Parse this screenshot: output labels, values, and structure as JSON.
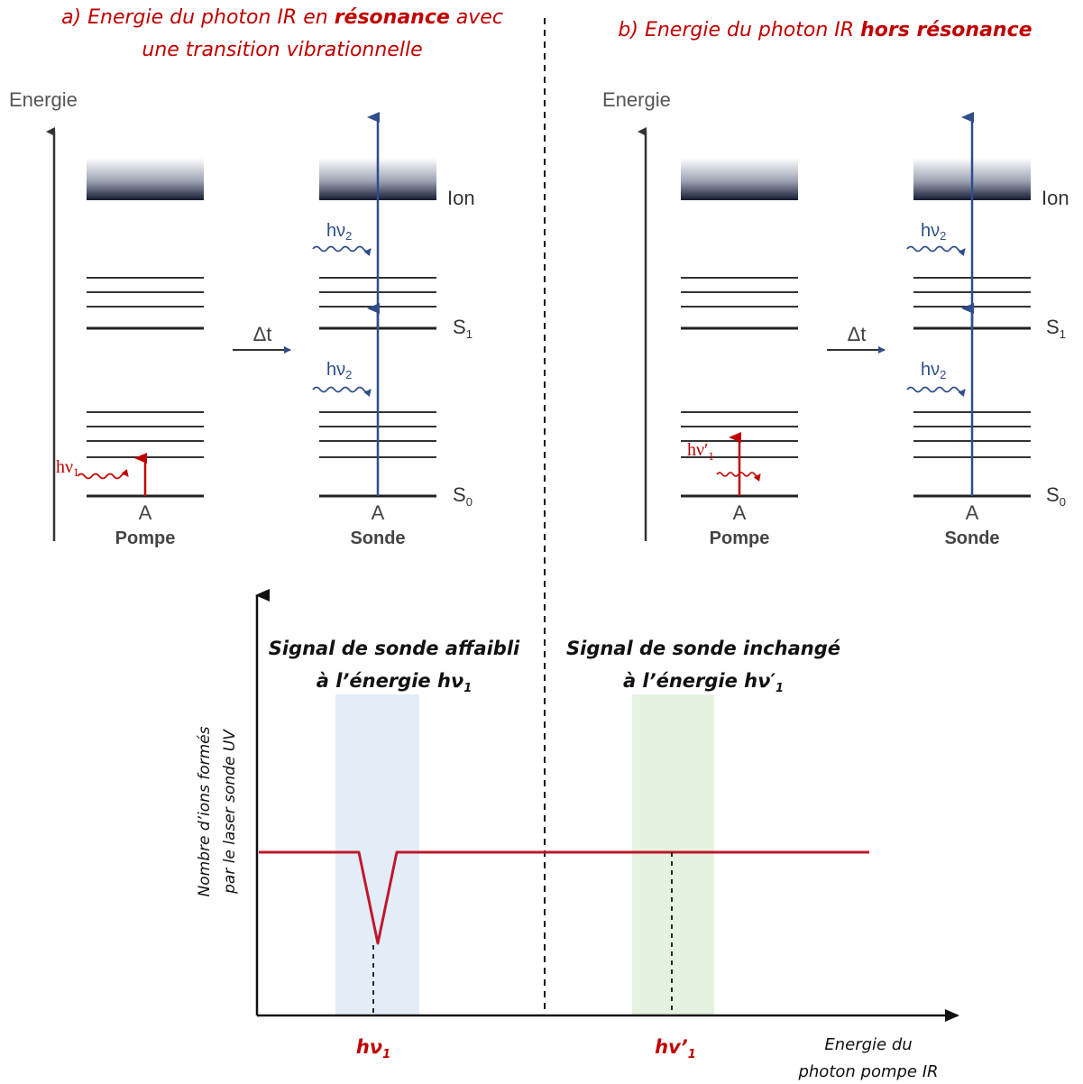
{
  "panel_a": {
    "title_prefix": "a) Energie du photon IR en ",
    "title_bold": "résonance",
    "title_suffix": " avec",
    "title_line2": "une transition vibrationnelle"
  },
  "panel_b": {
    "title_prefix": "b) Energie du photon IR ",
    "title_bold": "hors résonance"
  },
  "diagram": {
    "energy_axis_label": "Energie",
    "delay_label": "Δt",
    "level_ion": "Ion",
    "level_s1": "S",
    "level_s1_sub": "1",
    "level_s0": "S",
    "level_s0_sub": "0",
    "state_label": "A",
    "pump_label": "Pompe",
    "probe_label": "Sonde",
    "hv2": "hν",
    "hv2_sub": "2",
    "hv1": "hν",
    "hv1_sub": "1",
    "hv1_prime": "hν′",
    "hv1_prime_sub": "1"
  },
  "chart": {
    "signal_a_line1": "Signal de sonde affaibli",
    "signal_a_line2": "à l’énergie hν",
    "signal_a_sub": "1",
    "signal_b_line1": "Signal de sonde inchangé",
    "signal_b_line2": "à l’énergie hν′",
    "signal_b_sub": "1",
    "ylabel_line1": "Nombre d’ions formés",
    "ylabel_line2": "par le laser sonde UV",
    "xlabel_line1": "Energie du",
    "xlabel_line2": "photon pompe IR",
    "tick_a": "hν",
    "tick_a_sub": "1",
    "tick_b": "hv’",
    "tick_b_sub": "1",
    "colors": {
      "signal": "#c0182a",
      "band_a": "#e3edf8",
      "band_b": "#e6f2e0",
      "probe_arrow": "#2e4d8a",
      "pump_arrow": "#c00000"
    }
  }
}
